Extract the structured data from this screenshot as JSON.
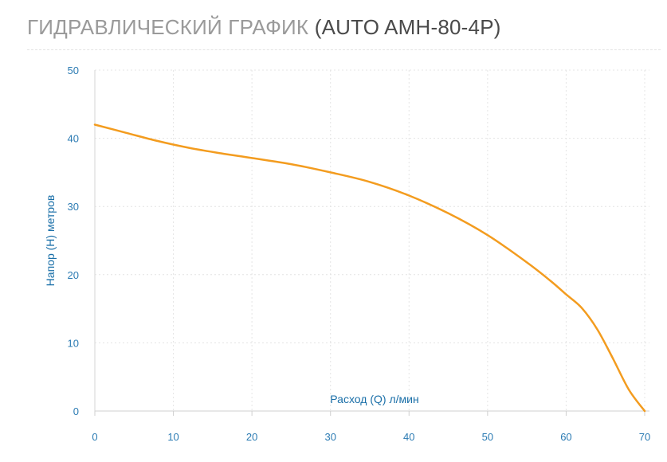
{
  "header": {
    "title_main": "ГИДРАВЛИЧЕСКИЙ ГРАФИК",
    "title_model": "(AUTO AMH-80-4P)"
  },
  "chart_data": {
    "type": "line",
    "xlabel": "Расход (Q) л/мин",
    "ylabel": "Напор (Н) метров",
    "xlim": [
      0,
      70
    ],
    "ylim": [
      0,
      50
    ],
    "x_ticks": [
      0,
      10,
      20,
      30,
      40,
      50,
      60,
      70
    ],
    "y_ticks": [
      0,
      10,
      20,
      30,
      40,
      50
    ],
    "grid": true,
    "line_color": "#f39c1f",
    "axis_label_color": "#1a6fa8",
    "series": [
      {
        "x": [
          0,
          4,
          8,
          12,
          16,
          20,
          25,
          30,
          35,
          40,
          45,
          50,
          55,
          58,
          60,
          62,
          64,
          66,
          68,
          70
        ],
        "values": [
          42,
          40.8,
          39.6,
          38.6,
          37.8,
          37.1,
          36.2,
          35,
          33.6,
          31.6,
          29,
          25.8,
          21.8,
          19.1,
          17.1,
          15.1,
          11.9,
          7.6,
          3.1,
          0
        ]
      }
    ]
  }
}
